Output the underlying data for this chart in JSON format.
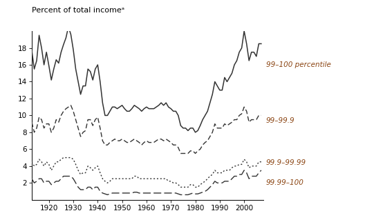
{
  "title": "Percent of total incomeᵃ",
  "years": [
    1913,
    1914,
    1915,
    1916,
    1917,
    1918,
    1919,
    1920,
    1921,
    1922,
    1923,
    1924,
    1925,
    1926,
    1927,
    1928,
    1929,
    1930,
    1931,
    1932,
    1933,
    1934,
    1935,
    1936,
    1937,
    1938,
    1939,
    1940,
    1941,
    1942,
    1943,
    1944,
    1945,
    1946,
    1947,
    1948,
    1949,
    1950,
    1951,
    1952,
    1953,
    1954,
    1955,
    1956,
    1957,
    1958,
    1959,
    1960,
    1961,
    1962,
    1963,
    1964,
    1965,
    1966,
    1967,
    1968,
    1969,
    1970,
    1971,
    1972,
    1973,
    1974,
    1975,
    1976,
    1977,
    1978,
    1979,
    1980,
    1981,
    1982,
    1983,
    1984,
    1985,
    1986,
    1987,
    1988,
    1989,
    1990,
    1991,
    1992,
    1993,
    1994,
    1995,
    1996,
    1997,
    1998,
    1999,
    2000,
    2001,
    2002,
    2003,
    2004,
    2005,
    2006,
    2007
  ],
  "p99_100": [
    17.7,
    15.5,
    16.5,
    19.5,
    18.0,
    16.0,
    17.5,
    15.9,
    14.2,
    15.5,
    16.6,
    16.2,
    17.5,
    18.4,
    19.2,
    20.5,
    19.6,
    17.8,
    15.5,
    14.0,
    12.5,
    13.5,
    13.5,
    15.5,
    15.2,
    14.2,
    15.5,
    16.0,
    14.0,
    11.5,
    10.0,
    10.0,
    10.5,
    11.0,
    11.0,
    10.8,
    11.0,
    11.2,
    10.8,
    10.5,
    10.5,
    10.8,
    11.2,
    11.0,
    10.8,
    10.5,
    10.8,
    11.0,
    10.8,
    10.8,
    10.8,
    11.0,
    11.2,
    11.5,
    11.2,
    11.5,
    11.0,
    10.8,
    10.5,
    10.5,
    10.0,
    8.8,
    8.5,
    8.5,
    8.2,
    8.5,
    8.5,
    8.0,
    8.2,
    8.8,
    9.5,
    10.0,
    10.5,
    11.5,
    12.5,
    14.0,
    13.5,
    13.0,
    13.0,
    14.5,
    14.0,
    14.5,
    15.0,
    16.0,
    16.5,
    17.5,
    18.0,
    20.0,
    18.5,
    16.5,
    17.5,
    17.5,
    17.0,
    18.5,
    18.5
  ],
  "p99_999": [
    9.2,
    8.0,
    8.5,
    9.8,
    9.5,
    8.5,
    9.0,
    9.0,
    8.0,
    8.5,
    9.5,
    9.2,
    10.0,
    10.5,
    10.8,
    11.0,
    11.2,
    10.5,
    9.5,
    8.5,
    7.5,
    8.0,
    8.2,
    9.5,
    9.5,
    8.8,
    9.5,
    9.8,
    8.5,
    7.0,
    6.5,
    6.5,
    6.8,
    7.0,
    7.2,
    7.0,
    7.0,
    7.2,
    7.0,
    6.8,
    6.8,
    7.0,
    7.2,
    7.0,
    6.8,
    6.5,
    6.8,
    7.0,
    6.8,
    6.8,
    6.8,
    7.0,
    7.2,
    7.2,
    7.0,
    7.2,
    7.0,
    6.8,
    6.5,
    6.5,
    6.2,
    5.5,
    5.5,
    5.5,
    5.5,
    5.8,
    5.8,
    5.5,
    5.8,
    6.0,
    6.5,
    6.8,
    7.0,
    7.5,
    8.0,
    9.0,
    8.5,
    8.5,
    8.5,
    9.0,
    8.8,
    9.0,
    9.2,
    9.5,
    9.5,
    10.0,
    10.2,
    11.0,
    10.5,
    9.2,
    9.5,
    9.5,
    9.5,
    10.0,
    10.0
  ],
  "p999_9999": [
    4.5,
    4.0,
    4.2,
    4.8,
    4.5,
    4.0,
    4.5,
    4.2,
    3.5,
    4.0,
    4.5,
    4.5,
    4.8,
    5.0,
    5.0,
    5.0,
    5.0,
    4.8,
    4.2,
    3.5,
    3.0,
    3.2,
    3.2,
    4.0,
    3.8,
    3.5,
    3.8,
    4.0,
    3.2,
    2.5,
    2.2,
    2.0,
    2.2,
    2.5,
    2.5,
    2.5,
    2.5,
    2.5,
    2.5,
    2.5,
    2.5,
    2.5,
    2.8,
    2.8,
    2.5,
    2.5,
    2.5,
    2.5,
    2.5,
    2.5,
    2.5,
    2.5,
    2.5,
    2.5,
    2.5,
    2.5,
    2.2,
    2.2,
    2.0,
    2.0,
    1.8,
    1.5,
    1.5,
    1.5,
    1.5,
    1.8,
    1.8,
    1.5,
    1.5,
    1.8,
    2.0,
    2.2,
    2.5,
    2.8,
    3.0,
    3.5,
    3.2,
    3.2,
    3.2,
    3.5,
    3.5,
    3.5,
    3.8,
    4.0,
    4.0,
    4.2,
    4.2,
    4.8,
    4.5,
    3.8,
    4.0,
    4.0,
    4.0,
    4.5,
    4.5
  ],
  "p9999_100": [
    2.5,
    2.0,
    2.2,
    2.5,
    2.5,
    2.0,
    2.2,
    2.2,
    1.8,
    2.0,
    2.2,
    2.2,
    2.5,
    2.8,
    2.8,
    2.8,
    2.8,
    2.5,
    2.0,
    1.5,
    1.2,
    1.2,
    1.2,
    1.5,
    1.5,
    1.2,
    1.5,
    1.5,
    1.0,
    0.8,
    0.7,
    0.6,
    0.7,
    0.8,
    0.8,
    0.8,
    0.8,
    0.8,
    0.8,
    0.8,
    0.8,
    0.8,
    0.9,
    0.9,
    0.8,
    0.8,
    0.8,
    0.8,
    0.8,
    0.8,
    0.8,
    0.8,
    0.8,
    0.8,
    0.8,
    0.8,
    0.8,
    0.8,
    0.8,
    0.8,
    0.7,
    0.6,
    0.6,
    0.6,
    0.6,
    0.7,
    0.8,
    0.7,
    0.7,
    0.8,
    0.9,
    1.0,
    1.2,
    1.5,
    1.8,
    2.2,
    2.0,
    2.0,
    2.0,
    2.2,
    2.2,
    2.2,
    2.5,
    2.8,
    2.8,
    3.0,
    3.0,
    3.5,
    3.2,
    2.5,
    2.8,
    2.8,
    2.8,
    3.2,
    3.5
  ],
  "ylim": [
    0,
    20
  ],
  "yticks": [
    2,
    4,
    6,
    8,
    10,
    12,
    14,
    16,
    18
  ],
  "xticks": [
    1920,
    1930,
    1940,
    1950,
    1960,
    1970,
    1980,
    1990,
    2000
  ],
  "xlim": [
    1913,
    2008
  ],
  "annotation_color": "#8B4513",
  "line_color": "#333333",
  "bg_color": "#ffffff"
}
